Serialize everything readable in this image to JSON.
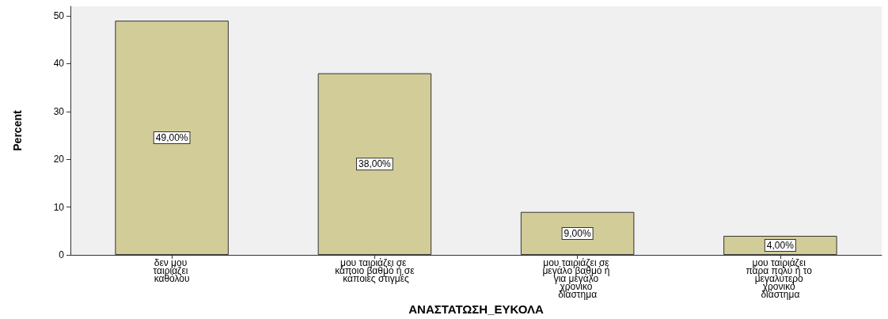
{
  "chart_data": {
    "type": "bar",
    "xlabel": "ΑΝΑΣΤΑΤΩΣΗ_ΕΥΚΟΛΑ",
    "ylabel": "Percent",
    "categories": [
      "δεν μου ταιριάζει καθόλου",
      "μου ταιριάζει σε κάποιο βαθμό ή σε κάποιες στιγμές",
      "μου ταιριάζει σε μεγάλο βαθμό ή για μεγάλο χρονικό διάστημα",
      "μου ταιριάζει πάρα πολύ ή το μεγαλύτερο χρονικό διάστημα"
    ],
    "values": [
      49,
      38,
      9,
      4
    ],
    "value_labels": [
      "49,00%",
      "38,00%",
      "9,00%",
      "4,00%"
    ],
    "color": "#d2cd98",
    "ylim": [
      0,
      52
    ],
    "yticks": [
      0,
      10,
      20,
      30,
      40,
      50
    ],
    "grid": false
  }
}
